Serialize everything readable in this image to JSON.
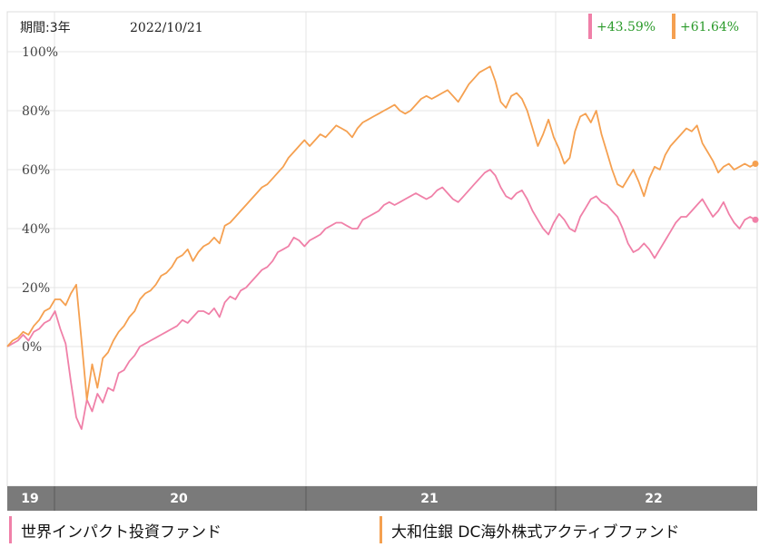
{
  "header": {
    "period_label": "期間:3年",
    "date_label": "2022/10/21"
  },
  "badges": [
    {
      "text": "+43.59%",
      "color": "#f080a8"
    },
    {
      "text": "+61.64%",
      "color": "#f5a050"
    }
  ],
  "badge_text_color": "#2a9a2a",
  "colors": {
    "grid": "#e4e4e4",
    "axis_band": "#7a7a7a",
    "axis_band_text": "#ffffff"
  },
  "chart_data": {
    "type": "line",
    "title": "",
    "xlabel": "",
    "ylabel": "",
    "ylim": [
      -48,
      100
    ],
    "yticks": [
      "100%",
      "80%",
      "60%",
      "40%",
      "20%",
      "0%"
    ],
    "ytick_values": [
      100,
      80,
      60,
      40,
      20,
      0
    ],
    "x_labels": [
      "19",
      "20",
      "21",
      "22"
    ],
    "grid": true,
    "legend_position": "bottom",
    "series": [
      {
        "name": "世界インパクト投資ファンド",
        "color": "#f080a8",
        "end_label": "+43.59%",
        "values": [
          0,
          1,
          2,
          4,
          2,
          5,
          6,
          8,
          9,
          12,
          6,
          1,
          -12,
          -24,
          -28,
          -18,
          -22,
          -16,
          -19,
          -14,
          -15,
          -9,
          -8,
          -5,
          -3,
          0,
          1,
          2,
          3,
          4,
          5,
          6,
          7,
          9,
          8,
          10,
          12,
          12,
          11,
          13,
          10,
          15,
          17,
          16,
          19,
          20,
          22,
          24,
          26,
          27,
          29,
          32,
          33,
          34,
          37,
          36,
          34,
          36,
          37,
          38,
          40,
          41,
          42,
          42,
          41,
          40,
          40,
          43,
          44,
          45,
          46,
          48,
          49,
          48,
          49,
          50,
          51,
          52,
          51,
          50,
          51,
          53,
          54,
          52,
          50,
          49,
          51,
          53,
          55,
          57,
          59,
          60,
          58,
          54,
          51,
          50,
          52,
          53,
          50,
          46,
          43,
          40,
          38,
          42,
          45,
          43,
          40,
          39,
          44,
          47,
          50,
          51,
          49,
          48,
          46,
          44,
          40,
          35,
          32,
          33,
          35,
          33,
          30,
          33,
          36,
          39,
          42,
          44,
          44,
          46,
          48,
          50,
          47,
          44,
          46,
          49,
          45,
          42,
          40,
          43,
          44,
          43
        ]
      },
      {
        "name": "大和住銀 DC海外株式アクティブファンド",
        "color": "#f5a050",
        "end_label": "+61.64%",
        "values": [
          0,
          2,
          3,
          5,
          4,
          7,
          9,
          12,
          13,
          16,
          16,
          14,
          18,
          21,
          2,
          -18,
          -6,
          -14,
          -4,
          -2,
          2,
          5,
          7,
          10,
          12,
          16,
          18,
          19,
          21,
          24,
          25,
          27,
          30,
          31,
          33,
          29,
          32,
          34,
          35,
          37,
          35,
          41,
          42,
          44,
          46,
          48,
          50,
          52,
          54,
          55,
          57,
          59,
          61,
          64,
          66,
          68,
          70,
          68,
          70,
          72,
          71,
          73,
          75,
          74,
          73,
          71,
          74,
          76,
          77,
          78,
          79,
          80,
          81,
          82,
          80,
          79,
          80,
          82,
          84,
          85,
          84,
          85,
          86,
          87,
          85,
          83,
          86,
          89,
          91,
          93,
          94,
          95,
          90,
          83,
          81,
          85,
          86,
          84,
          80,
          74,
          68,
          72,
          77,
          71,
          67,
          62,
          64,
          73,
          78,
          79,
          76,
          80,
          72,
          66,
          60,
          55,
          54,
          57,
          60,
          56,
          51,
          57,
          61,
          60,
          65,
          68,
          70,
          72,
          74,
          73,
          75,
          69,
          66,
          63,
          59,
          61,
          62,
          60,
          61,
          62,
          61,
          62
        ]
      }
    ]
  }
}
